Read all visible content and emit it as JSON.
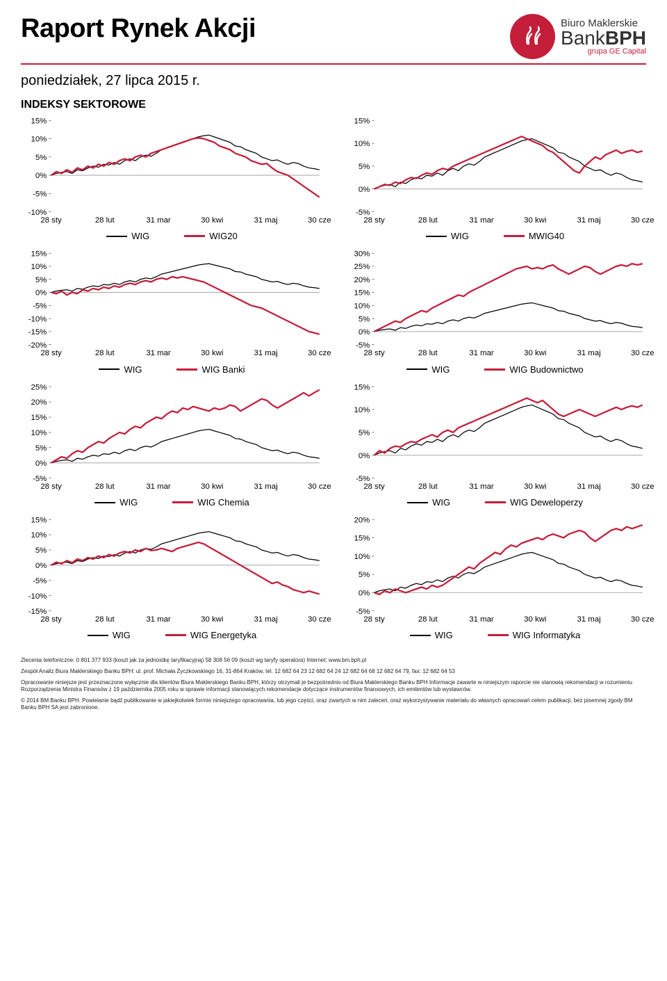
{
  "report": {
    "title": "Raport Rynek Akcji",
    "subtitle": "poniedziałek, 27 lipca 2015 r.",
    "section": "INDEKSY SEKTOROWE"
  },
  "brand": {
    "line1": "Biuro Maklerskie",
    "bank_word": "Bank",
    "bph_word": "BPH",
    "sub": "grupa GE Capital",
    "logo_bg": "#c41e3a"
  },
  "colors": {
    "wig": "#000000",
    "series": "#c41e3a",
    "grid": "#cccccc",
    "bg": "#ffffff"
  },
  "x_axis": {
    "ticks": [
      "28 sty",
      "28 lut",
      "31 mar",
      "30 kwi",
      "31 maj",
      "30 cze"
    ]
  },
  "wig_series": [
    0,
    0.5,
    0.8,
    1,
    0.5,
    1.5,
    1.2,
    2,
    2.5,
    2.2,
    3,
    2.8,
    3.5,
    3,
    4,
    4.5,
    4,
    5,
    5.5,
    5.2,
    6,
    7,
    7.5,
    8,
    8.5,
    9,
    9.5,
    10,
    10.5,
    10.8,
    11,
    10.5,
    10,
    9.5,
    9,
    8,
    7.8,
    7,
    6.5,
    6,
    5,
    4.5,
    4,
    4.2,
    3.5,
    3,
    3.5,
    3.2,
    2.5,
    2,
    1.8,
    1.5
  ],
  "charts": [
    {
      "id": "wig20",
      "left_legend": "WIG",
      "right_legend": "WIG20",
      "ymin": -10,
      "ymax": 15,
      "yticks": [
        -10,
        -5,
        0,
        5,
        10,
        15
      ],
      "series": [
        0,
        1,
        0.5,
        1.5,
        0.8,
        2,
        1.5,
        2.5,
        2,
        3,
        2.5,
        3.5,
        3,
        4,
        4.5,
        4,
        5,
        5.5,
        5,
        6,
        6.5,
        7,
        7.5,
        8,
        8.5,
        9,
        9.5,
        10,
        10.2,
        10,
        9.5,
        9,
        8,
        7.5,
        7,
        6,
        5.5,
        5,
        4,
        3.5,
        3,
        3.2,
        2,
        1,
        0.5,
        0,
        -1,
        -2,
        -3,
        -4,
        -5,
        -6
      ]
    },
    {
      "id": "mwig40",
      "left_legend": "WIG",
      "right_legend": "MWIG40",
      "ymin": -5,
      "ymax": 15,
      "yticks": [
        -5,
        0,
        5,
        10,
        15
      ],
      "series": [
        0,
        0.5,
        1,
        0.8,
        1.5,
        1.2,
        2,
        2.5,
        2.3,
        3,
        3.5,
        3.2,
        4,
        4.5,
        4.2,
        5,
        5.5,
        6,
        6.5,
        7,
        7.5,
        8,
        8.5,
        9,
        9.5,
        10,
        10.5,
        11,
        11.5,
        11,
        10.5,
        10,
        9.5,
        8.5,
        8,
        7,
        6,
        5,
        4,
        3.5,
        5,
        6,
        7,
        6.5,
        7.5,
        8,
        8.5,
        7.8,
        8.2,
        8.5,
        8,
        8.3
      ]
    },
    {
      "id": "banki",
      "left_legend": "WIG",
      "right_legend": "WIG Banki",
      "ymin": -20,
      "ymax": 15,
      "yticks": [
        -20,
        -15,
        -10,
        -5,
        0,
        5,
        10,
        15
      ],
      "series": [
        0,
        -0.5,
        0.5,
        -1,
        0,
        -0.5,
        1,
        0.5,
        1.5,
        1,
        2,
        1.5,
        2.5,
        2,
        3,
        3.5,
        3,
        4,
        4.5,
        4,
        5,
        5.5,
        5,
        6,
        5.5,
        6,
        5.5,
        5,
        4.5,
        4,
        3,
        2,
        1,
        0,
        -1,
        -2,
        -3,
        -4,
        -5,
        -5.5,
        -6,
        -7,
        -8,
        -9,
        -10,
        -11,
        -12,
        -13,
        -14,
        -15,
        -15.5,
        -16
      ]
    },
    {
      "id": "budownictwo",
      "left_legend": "WIG",
      "right_legend": "WIG Budownictwo",
      "ymin": -5,
      "ymax": 30,
      "yticks": [
        -5,
        0,
        5,
        10,
        15,
        20,
        25,
        30
      ],
      "series": [
        0,
        1,
        2,
        3,
        4,
        3.5,
        5,
        6,
        7,
        8,
        7.5,
        9,
        10,
        11,
        12,
        13,
        14,
        13.5,
        15,
        16,
        17,
        18,
        19,
        20,
        21,
        22,
        23,
        24,
        24.5,
        25,
        24,
        24.5,
        24,
        25,
        25.5,
        24,
        23,
        22,
        23,
        24,
        25,
        24.5,
        23,
        22,
        23,
        24,
        25,
        25.5,
        25,
        26,
        25.5,
        26
      ]
    },
    {
      "id": "chemia",
      "left_legend": "WIG",
      "right_legend": "WIG Chemia",
      "ymin": -5,
      "ymax": 25,
      "yticks": [
        -5,
        0,
        5,
        10,
        15,
        20,
        25
      ],
      "series": [
        0,
        1,
        2,
        1.5,
        3,
        4,
        3.5,
        5,
        6,
        7,
        6.5,
        8,
        9,
        10,
        9.5,
        11,
        12,
        11.5,
        13,
        14,
        15,
        14.5,
        16,
        17,
        16.5,
        18,
        17.5,
        18.5,
        18,
        17.5,
        17,
        18,
        17.5,
        18,
        19,
        18.5,
        17,
        18,
        19,
        20,
        21,
        20.5,
        19,
        18,
        19,
        20,
        21,
        22,
        23,
        22,
        23,
        24
      ]
    },
    {
      "id": "deweloperzy",
      "left_legend": "WIG",
      "right_legend": "WIG Deweloperzy",
      "ymin": -5,
      "ymax": 15,
      "yticks": [
        -5,
        0,
        5,
        10,
        15
      ],
      "series": [
        0,
        1,
        0.5,
        1.5,
        2,
        1.8,
        2.5,
        3,
        2.8,
        3.5,
        4,
        4.5,
        4,
        5,
        5.5,
        5,
        6,
        6.5,
        7,
        7.5,
        8,
        8.5,
        9,
        9.5,
        10,
        10.5,
        11,
        11.5,
        12,
        12.5,
        12,
        11.5,
        12,
        11,
        10,
        9,
        8.5,
        9,
        9.5,
        10,
        9.5,
        9,
        8.5,
        9,
        9.5,
        10,
        10.5,
        10,
        10.5,
        10.8,
        10.5,
        11
      ]
    },
    {
      "id": "energetyka",
      "left_legend": "WIG",
      "right_legend": "WIG Energetyka",
      "ymin": -15,
      "ymax": 15,
      "yticks": [
        -15,
        -10,
        -5,
        0,
        5,
        10,
        15
      ],
      "series": [
        0,
        1,
        0.5,
        1.5,
        0.8,
        2,
        1.5,
        2.5,
        2,
        3,
        2.5,
        3.5,
        3,
        4,
        4.5,
        4,
        5,
        4.5,
        5.5,
        4.8,
        5,
        5.5,
        5,
        4.5,
        5.5,
        6,
        6.5,
        7,
        7.5,
        7,
        6,
        5,
        4,
        3,
        2,
        1,
        0,
        -1,
        -2,
        -3,
        -4,
        -5,
        -6,
        -5.5,
        -6.5,
        -7,
        -8,
        -8.5,
        -9,
        -8.5,
        -9,
        -9.5
      ]
    },
    {
      "id": "informatyka",
      "left_legend": "WIG",
      "right_legend": "WIG Informatyka",
      "ymin": -5,
      "ymax": 20,
      "yticks": [
        -5,
        0,
        5,
        10,
        15,
        20
      ],
      "series": [
        0,
        -0.5,
        0.5,
        0,
        1,
        0.5,
        0,
        0.5,
        1,
        1.5,
        1,
        2,
        1.5,
        2,
        3,
        4,
        5,
        6,
        7,
        6.5,
        8,
        9,
        10,
        11,
        10.5,
        12,
        13,
        12.5,
        13.5,
        14,
        14.5,
        15,
        14.5,
        15.5,
        16,
        15.5,
        15,
        16,
        16.5,
        17,
        16.5,
        15,
        14,
        15,
        16,
        17,
        17.5,
        17,
        18,
        17.5,
        18,
        18.5
      ]
    }
  ],
  "footer": {
    "l1": "Zlecenia telefoniczne: 0  801  377  933 (koszt jak za jednostkę taryfikacyjną)   58 308 56 09 (koszt wg taryfy operatora)   Internet: www.bm.bph.pl",
    "l2": "Zespół Analiz Biura Maklerskiego Banku BPH: ul. prof. Michała Życzkowskiego 16, 31-864 Kraków,  tel. 12 682 64 23  12 682 64 24  12 682 64 68  12 682 64 79,  fax: 12 682 64 53",
    "l3": "Opracowanie niniejsze jest przeznaczone wyłącznie dla klientów Biura Maklerskiego Banku BPH, którzy otrzymali je bezpośrednio od Biura Maklerskiego Banku BPH Informacje zawarte w niniejszym raporcie nie stanowią rekomendacji w rozumieniu Rozporządzenia Ministra Finansów z 19 października 2005 roku w sprawie informacji stanowiących rekomendacje dotyczące instrumentów finansowych, ich emitentów lub wystawców.",
    "l4": "© 2014 BM Banku BPH. Powielanie bądź publikowanie w jakiejkolwiek formie niniejszego opracowania, lub jego części, oraz zwartych w nim zaleceń, oraz wykorzystywanie materiału do własnych opracowań celem publikacji, bez pisemnej zgody BM Banku BPH SA jest zabronione."
  }
}
